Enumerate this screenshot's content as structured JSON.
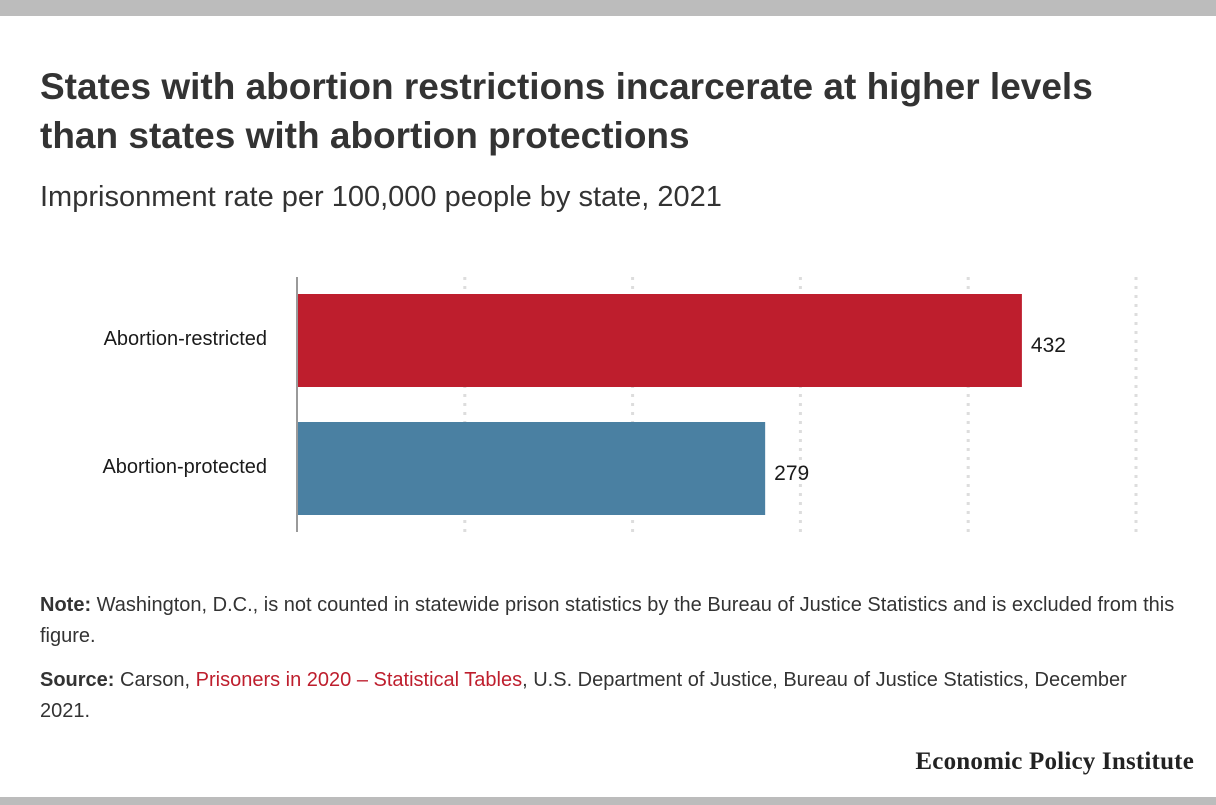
{
  "title": "States with abortion restrictions incarcerate at higher levels than states with abortion protections",
  "subtitle": "Imprisonment rate per 100,000 people by state, 2021",
  "chart_data": {
    "type": "bar",
    "orientation": "horizontal",
    "categories": [
      "Abortion-restricted",
      "Abortion-protected"
    ],
    "values": [
      432,
      279
    ],
    "data_labels": [
      "432",
      "279"
    ],
    "bar_colors": [
      "#be1e2d",
      "#4a80a2"
    ],
    "xlim": [
      0,
      500
    ],
    "xticks": [
      100,
      200,
      300,
      400,
      500
    ],
    "grid": "vertical dotted",
    "legend": "none"
  },
  "note": {
    "label": "Note:",
    "text": " Washington, D.C., is not counted in statewide prison statistics by the Bureau of Justice Statistics and is excluded from this figure."
  },
  "source": {
    "label": "Source:",
    "prefix": " Carson, ",
    "link_text": "Prisoners in 2020 – Statistical Tables",
    "suffix": ", U.S. Department of Justice, Bureau of Justice Statistics, December 2021."
  },
  "brand": "Economic Policy Institute",
  "colors": {
    "link": "#be1e2d",
    "rule": "#bcbcbc",
    "gridline": "#dddddd"
  }
}
